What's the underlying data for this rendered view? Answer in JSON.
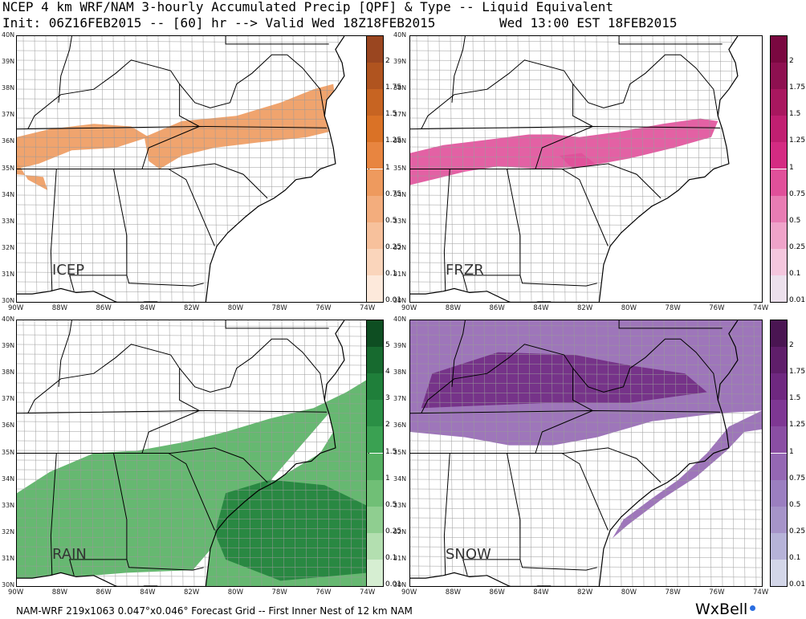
{
  "header": {
    "line1": "NCEP 4 km WRF/NAM 3-hourly Accumulated Precip [QPF] & Type -- Liquid Equivalent",
    "line2": "Init: 06Z16FEB2015 -- [60] hr --> Valid Wed 18Z18FEB2015",
    "line3": "Wed 13:00 EST 18FEB2015"
  },
  "footer": "NAM-WRF 219x1063 0.047°x0.046° Forecast Grid -- First Inner Nest of 12 km NAM",
  "logo": "WxBell",
  "axes": {
    "lat": [
      "40N",
      "39N",
      "38N",
      "37N",
      "36N",
      "35N",
      "34N",
      "33N",
      "32N",
      "31N",
      "30N"
    ],
    "lon": [
      "90W",
      "88W",
      "86W",
      "84W",
      "82W",
      "80W",
      "78W",
      "76W",
      "74W"
    ]
  },
  "panels": [
    {
      "id": "icep",
      "label": "ICEP",
      "color": "#f3955a",
      "colorbar": {
        "labels": [
          "2",
          "1.75",
          "1.5",
          "1.25",
          "1",
          "0.75",
          "0.5",
          "0.25",
          "0.1",
          "0.01"
        ],
        "colors": [
          "#9a4620",
          "#b0541f",
          "#c76422",
          "#da7226",
          "#e88540",
          "#ee9a5e",
          "#f3ad7d",
          "#f7c19c",
          "#fad5bb",
          "#fde9db"
        ]
      }
    },
    {
      "id": "frzr",
      "label": "FRZR",
      "color": "#d6388a",
      "colorbar": {
        "labels": [
          "2",
          "1.75",
          "1.5",
          "1.25",
          "1",
          "0.75",
          "0.5",
          "0.25",
          "0.1",
          "0.01"
        ],
        "colors": [
          "#7a0840",
          "#8e1050",
          "#a8175f",
          "#c01f71",
          "#d42b82",
          "#e0509a",
          "#e87cb3",
          "#efa3c9",
          "#f4c6dd",
          "#ece0ec"
        ]
      }
    },
    {
      "id": "rain",
      "label": "RAIN",
      "color": "#3d9a4c",
      "colorbar": {
        "labels": [
          "5",
          "4",
          "3",
          "2",
          "1.5",
          "1",
          "0.5",
          "0.25",
          "0.1",
          "0.01"
        ],
        "colors": [
          "#0e4e22",
          "#176a2f",
          "#1f7f3a",
          "#2a8f45",
          "#3aa152",
          "#55b062",
          "#70bf76",
          "#8fce90",
          "#b3dfb0",
          "#d6eed2"
        ]
      }
    },
    {
      "id": "snow",
      "label": "SNOW",
      "color": "#8f6bb6",
      "colorbar": {
        "labels": [
          "2",
          "1.75",
          "1.5",
          "1.25",
          "1",
          "0.75",
          "0.5",
          "0.25",
          "0.1",
          "0.01"
        ],
        "colors": [
          "#4a1552",
          "#5f1e6a",
          "#6f2880",
          "#7e3793",
          "#8a4ea3",
          "#9467b3",
          "#9b7fc0",
          "#a694c9",
          "#b6b3d8",
          "#d3d6e8"
        ]
      }
    }
  ]
}
